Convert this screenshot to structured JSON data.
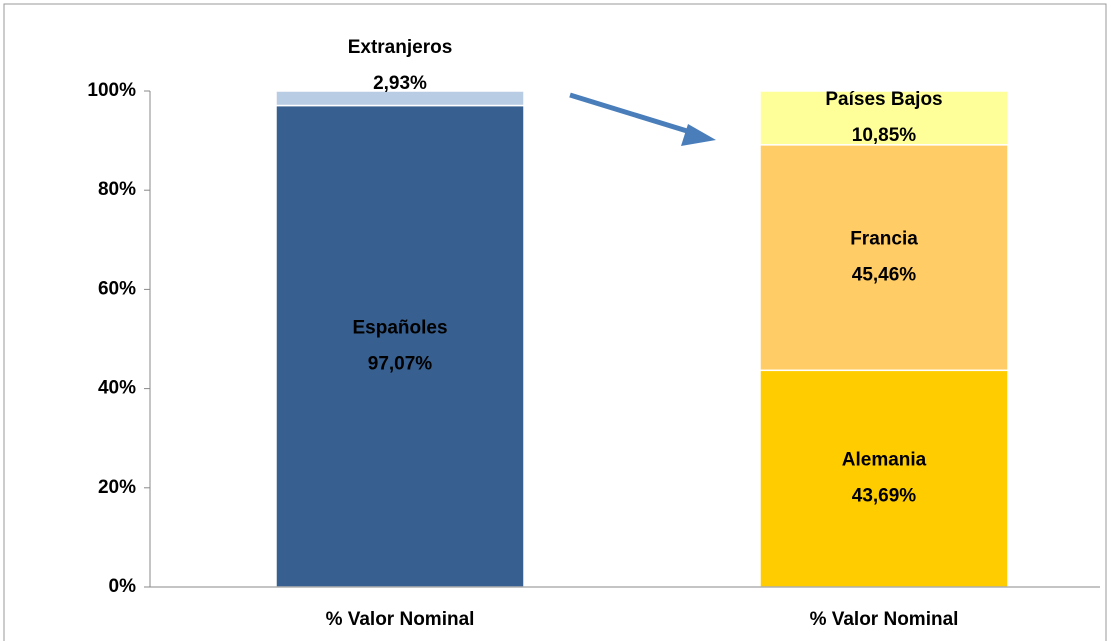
{
  "chart_data": {
    "type": "stacked_bar",
    "categories": [
      "% Valor Nominal",
      "% Valor Nominal"
    ],
    "series": [
      {
        "name": "Españoles",
        "color": "#375f8f",
        "values": [
          97.07,
          null
        ],
        "value_labels": [
          "97,07%",
          null
        ]
      },
      {
        "name": "Extranjeros",
        "color": "#b8cce4",
        "values": [
          2.93,
          null
        ],
        "value_labels": [
          "2,93%",
          null
        ]
      },
      {
        "name": "Alemania",
        "color": "#ffcc00",
        "values": [
          null,
          43.69
        ],
        "value_labels": [
          null,
          "43,69%"
        ]
      },
      {
        "name": "Francia",
        "color": "#ffcc66",
        "values": [
          null,
          45.46
        ],
        "value_labels": [
          null,
          "45,46%"
        ]
      },
      {
        "name": "Países Bajos",
        "color": "#ffff99",
        "values": [
          null,
          10.85
        ],
        "value_labels": [
          null,
          "10,85%"
        ]
      }
    ],
    "ylim": [
      0,
      100
    ],
    "yticks": [
      {
        "value": 0,
        "label": "0%"
      },
      {
        "value": 20,
        "label": "20%"
      },
      {
        "value": 40,
        "label": "40%"
      },
      {
        "value": 60,
        "label": "60%"
      },
      {
        "value": 80,
        "label": "80%"
      },
      {
        "value": 100,
        "label": "100%"
      }
    ],
    "grid": false
  }
}
